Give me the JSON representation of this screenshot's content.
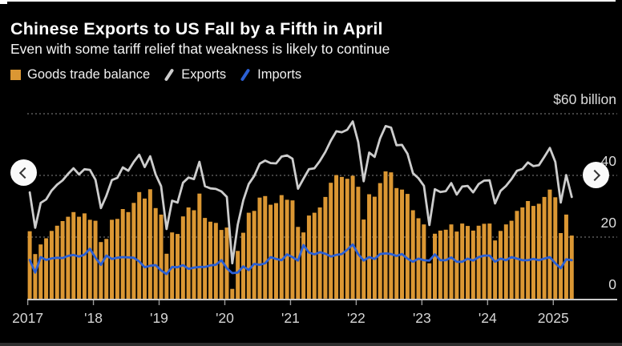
{
  "header": {
    "title": "Chinese Exports to US Fall by a Fifth in April",
    "subtitle": "Even with some tariff relief that weakness is likely to continue"
  },
  "legend": [
    {
      "label": "Goods trade balance",
      "type": "square",
      "color": "#DB9733"
    },
    {
      "label": "Exports",
      "type": "slash",
      "color": "#CDCDCD"
    },
    {
      "label": "Imports",
      "type": "slash",
      "color": "#2B60D5"
    }
  ],
  "nav": {
    "left_icon": "chevron-left",
    "right_icon": "chevron-right"
  },
  "palette": {
    "background": "#000000",
    "bar_orange": "#DB9733",
    "exports_gray": "#CDCDCD",
    "imports_blue": "#2B60D5",
    "grid_gray": "#6B6B6B",
    "axis_gray": "#C9C9C9",
    "label_gray": "#DCDCDC"
  },
  "chart_data": {
    "type": "combo-bar-line",
    "x_unit": "month",
    "x_start": "2017-01",
    "x_end": "2025-04",
    "n_points": 100,
    "grid": "dotted-horizontal",
    "ylim": [
      0,
      63
    ],
    "y_ticks": [
      {
        "value": 60,
        "label": "$60 billion"
      },
      {
        "value": 40,
        "label": "40"
      },
      {
        "value": 20,
        "label": "20"
      },
      {
        "value": 0,
        "label": "0"
      }
    ],
    "x_tick_labels": [
      "2017",
      "'18",
      "'19",
      "'20",
      "'21",
      "'22",
      "'23",
      "'24",
      "2025"
    ],
    "x_tick_month_index": [
      0,
      12,
      24,
      36,
      48,
      60,
      72,
      84,
      96
    ],
    "series": [
      {
        "name": "Goods trade balance",
        "type": "bar",
        "color": "#DB9733",
        "values": [
          21.9,
          14.5,
          17.6,
          19.6,
          22.0,
          23.7,
          25.2,
          26.6,
          28.1,
          26.6,
          27.7,
          25.6,
          25.3,
          18.4,
          19.4,
          25.6,
          25.9,
          29.1,
          28.1,
          31.1,
          34.6,
          32.5,
          35.5,
          29.4,
          27.3,
          14.6,
          21.5,
          21.0,
          26.7,
          29.6,
          28.7,
          34.1,
          26.2,
          25.0,
          24.6,
          22.3,
          23.1,
          3.2,
          15.5,
          21.4,
          27.9,
          28.5,
          32.8,
          33.3,
          30.5,
          31.0,
          33.6,
          32.1,
          31.9,
          23.3,
          21.5,
          27.0,
          27.9,
          29.6,
          33.0,
          37.6,
          40.1,
          39.5,
          38.9,
          39.9,
          36.3,
          25.7,
          33.9,
          33.1,
          37.5,
          41.3,
          41.0,
          35.9,
          35.4,
          34.0,
          28.7,
          26.1,
          24.1,
          11.5,
          21.1,
          22.1,
          22.4,
          24.1,
          21.8,
          24.4,
          23.6,
          22.1,
          23.7,
          24.3,
          24.4,
          18.9,
          22.0,
          24.1,
          25.3,
          28.5,
          29.6,
          31.7,
          30.1,
          30.8,
          33.0,
          35.4,
          32.9,
          21.3,
          27.3,
          20.5
        ]
      },
      {
        "name": "Exports",
        "type": "line",
        "color": "#CDCDCD",
        "values": [
          34.5,
          23.0,
          31.1,
          32.2,
          35.1,
          37.0,
          38.4,
          40.5,
          42.3,
          40.3,
          42.0,
          41.8,
          38.6,
          29.4,
          33.4,
          38.5,
          39.2,
          42.6,
          41.5,
          44.4,
          46.7,
          42.7,
          46.2,
          40.3,
          36.5,
          22.6,
          31.8,
          31.2,
          37.6,
          39.3,
          38.8,
          44.4,
          36.5,
          35.8,
          35.6,
          34.8,
          33.0,
          11.5,
          24.0,
          31.9,
          37.2,
          39.8,
          43.8,
          44.8,
          44.0,
          43.9,
          46.1,
          46.5,
          45.4,
          35.7,
          38.9,
          42.0,
          42.3,
          44.7,
          47.6,
          51.3,
          54.3,
          54.0,
          54.8,
          57.5,
          50.8,
          38.1,
          47.4,
          46.0,
          52.0,
          56.0,
          55.5,
          49.8,
          49.9,
          47.0,
          40.7,
          39.1,
          36.6,
          23.9,
          35.5,
          34.6,
          34.9,
          37.5,
          33.8,
          36.4,
          36.6,
          34.5,
          37.2,
          38.3,
          38.4,
          30.9,
          35.0,
          36.6,
          38.8,
          41.5,
          42.1,
          44.2,
          43.0,
          43.3,
          46.0,
          48.9,
          44.4,
          31.2,
          40.1,
          33.0
        ]
      },
      {
        "name": "Imports",
        "type": "line",
        "color": "#2B60D5",
        "values": [
          12.6,
          8.5,
          13.5,
          12.6,
          13.1,
          13.3,
          13.2,
          13.9,
          14.2,
          13.7,
          14.3,
          16.2,
          13.3,
          11.0,
          14.0,
          12.9,
          13.3,
          13.5,
          13.4,
          13.3,
          12.1,
          10.2,
          10.7,
          10.9,
          9.2,
          8.0,
          10.3,
          10.2,
          10.9,
          9.7,
          10.1,
          10.3,
          10.3,
          10.8,
          11.0,
          12.5,
          9.9,
          8.3,
          8.5,
          10.5,
          9.3,
          11.3,
          11.0,
          11.5,
          13.5,
          12.9,
          12.5,
          14.4,
          13.5,
          12.4,
          17.4,
          15.0,
          14.4,
          15.1,
          14.6,
          13.7,
          14.2,
          14.5,
          15.9,
          17.6,
          14.5,
          12.4,
          13.5,
          12.9,
          14.5,
          14.7,
          14.5,
          13.9,
          14.5,
          13.0,
          12.0,
          13.0,
          12.5,
          12.4,
          14.4,
          12.5,
          12.5,
          13.4,
          12.0,
          12.0,
          13.0,
          12.4,
          13.5,
          14.0,
          14.0,
          12.0,
          13.0,
          12.5,
          13.5,
          13.0,
          12.5,
          12.5,
          12.9,
          12.5,
          13.0,
          13.5,
          11.5,
          9.9,
          12.8,
          12.5
        ]
      }
    ]
  }
}
